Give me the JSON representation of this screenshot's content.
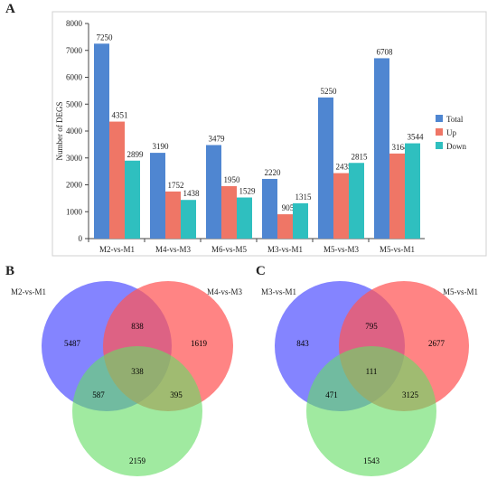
{
  "panels": {
    "a": "A",
    "b": "B",
    "c": "C"
  },
  "chart_data": [
    {
      "type": "bar",
      "ylabel": "Number of DEGS",
      "ylim": [
        0,
        8000
      ],
      "yticks": [
        0,
        1000,
        2000,
        3000,
        4000,
        5000,
        6000,
        7000,
        8000
      ],
      "categories": [
        "M2-vs-M1",
        "M4-vs-M3",
        "M6-vs-M5",
        "M3-vs-M1",
        "M5-vs-M3",
        "M5-vs-M1"
      ],
      "series": [
        {
          "name": "Total",
          "color": "#4f86d1",
          "values": [
            7250,
            3190,
            3479,
            2220,
            5250,
            6708
          ]
        },
        {
          "name": "Up",
          "color": "#ef7666",
          "values": [
            4351,
            1752,
            1950,
            905,
            2435,
            3164
          ]
        },
        {
          "name": "Down",
          "color": "#2fbfbf",
          "values": [
            2899,
            1438,
            1529,
            1315,
            2815,
            3544
          ]
        }
      ],
      "legend": "right",
      "grid": false
    },
    {
      "type": "venn",
      "sets": [
        {
          "name": "M2-vs-M1",
          "color": "#5555ff"
        },
        {
          "name": "M4-vs-M3",
          "color": "#ff5555"
        },
        {
          "name": "",
          "color": "#66dd66"
        }
      ],
      "regions": {
        "only_1": 5487,
        "only_2": 1619,
        "only_3": 2159,
        "1_2": 838,
        "1_3": 587,
        "2_3": 395,
        "1_2_3": 338
      }
    },
    {
      "type": "venn",
      "sets": [
        {
          "name": "M3-vs-M1",
          "color": "#5555ff"
        },
        {
          "name": "M5-vs-M1",
          "color": "#ff5555"
        },
        {
          "name": "",
          "color": "#66dd66"
        }
      ],
      "regions": {
        "only_1": 843,
        "only_2": 2677,
        "only_3": 1543,
        "1_2": 795,
        "1_3": 471,
        "2_3": 3125,
        "1_2_3": 111
      }
    }
  ]
}
